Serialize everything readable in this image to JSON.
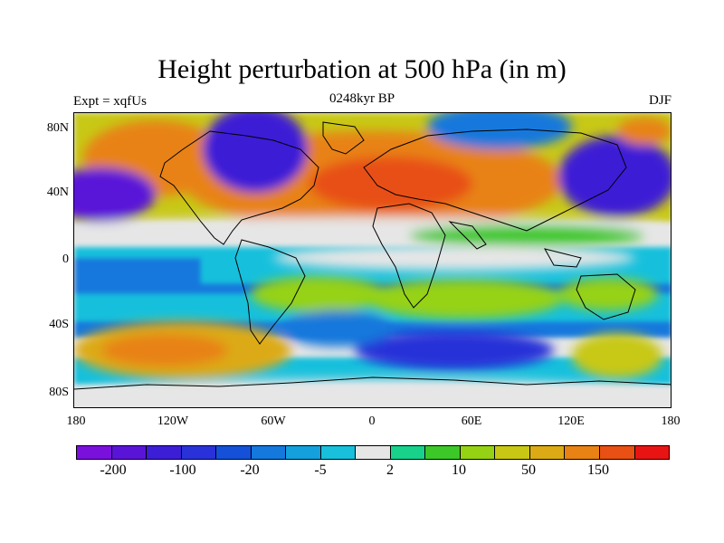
{
  "figure": {
    "title": "Height perturbation at 500 hPa (in m)",
    "left_string": "Expt = xqfUs",
    "center_string": "0248kyr BP",
    "right_string": "DJF"
  },
  "map": {
    "lat_labels": [
      "80N",
      "40N",
      "0",
      "40S",
      "80S"
    ],
    "lon_labels": [
      "180",
      "120W",
      "60W",
      "0",
      "60E",
      "120E",
      "180"
    ]
  },
  "colorbar": {
    "colors": [
      "#7a10dc",
      "#5a14d8",
      "#3c1ed6",
      "#2832d8",
      "#1450d8",
      "#1478dc",
      "#14a0dc",
      "#18c0dc",
      "#e6e6e6",
      "#18d28c",
      "#3cc828",
      "#96d214",
      "#c8c814",
      "#dcaa14",
      "#e88214",
      "#e85014",
      "#e81414"
    ],
    "labels": [
      "-200",
      "-100",
      "-20",
      "-5",
      "2",
      "10",
      "50",
      "150"
    ]
  }
}
